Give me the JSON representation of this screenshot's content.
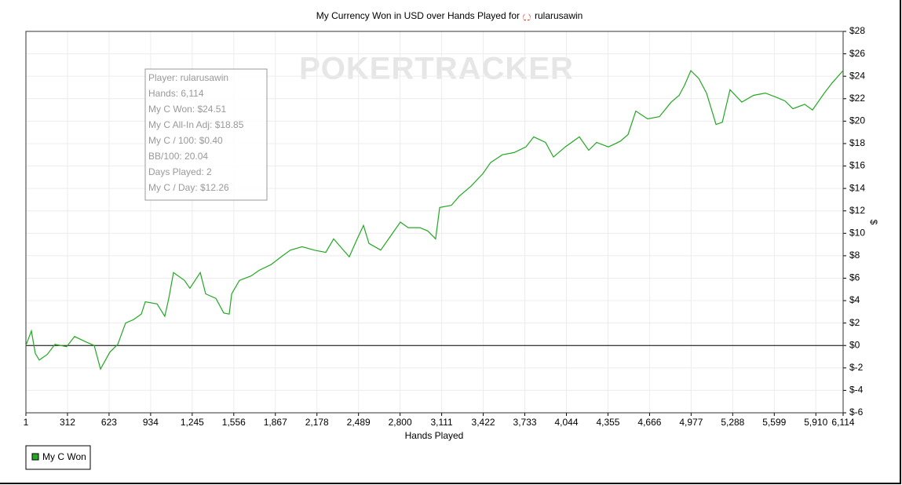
{
  "chart_data": {
    "type": "line",
    "title": "My Currency Won in USD over Hands Played for",
    "player": "rularusawin",
    "watermark": "POKERTRACKER",
    "x_label": "Hands Played",
    "y_label": "$",
    "info_box": [
      "Player: rularusawin",
      "Hands: 6,114",
      "My C Won: $24.51",
      "My C All-In Adj: $18.85",
      "My C / 100: $0.40",
      "BB/100: 20.04",
      "Days Played: 2",
      "My C / Day: $12.26"
    ],
    "grid": true,
    "legend": "bottom-left",
    "xlim": [
      1,
      6114
    ],
    "xticks": [
      1,
      312,
      623,
      934,
      {
        "value": 1245,
        "label": "1,245"
      },
      {
        "value": 1556,
        "label": "1,556"
      },
      {
        "value": 1867,
        "label": "1,867"
      },
      {
        "value": 2178,
        "label": "2,178"
      },
      {
        "value": 2489,
        "label": "2,489"
      },
      {
        "value": 2800,
        "label": "2,800"
      },
      {
        "value": 3111,
        "label": "3,111"
      },
      {
        "value": 3422,
        "label": "3,422"
      },
      {
        "value": 3733,
        "label": "3,733"
      },
      {
        "value": 4044,
        "label": "4,044"
      },
      {
        "value": 4355,
        "label": "4,355"
      },
      {
        "value": 4666,
        "label": "4,666"
      },
      {
        "value": 4977,
        "label": "4,977"
      },
      {
        "value": 5288,
        "label": "5,288"
      },
      {
        "value": 5599,
        "label": "5,599"
      },
      {
        "value": 5910,
        "label": "5,910"
      },
      {
        "value": 6114,
        "label": "6,114"
      }
    ],
    "ylim": [
      -6,
      28
    ],
    "yticks": [
      {
        "value": -6,
        "label": "$-6"
      },
      {
        "value": -4,
        "label": "$-4"
      },
      {
        "value": -2,
        "label": "$-2"
      },
      {
        "value": 0,
        "label": "$0"
      },
      {
        "value": 2,
        "label": "$2"
      },
      {
        "value": 4,
        "label": "$4"
      },
      {
        "value": 6,
        "label": "$6"
      },
      {
        "value": 8,
        "label": "$8"
      },
      {
        "value": 10,
        "label": "$10"
      },
      {
        "value": 12,
        "label": "$12"
      },
      {
        "value": 14,
        "label": "$14"
      },
      {
        "value": 16,
        "label": "$16"
      },
      {
        "value": 18,
        "label": "$18"
      },
      {
        "value": 20,
        "label": "$20"
      },
      {
        "value": 22,
        "label": "$22"
      },
      {
        "value": 24,
        "label": "$24"
      },
      {
        "value": 26,
        "label": "$26"
      },
      {
        "value": 28,
        "label": "$28"
      }
    ],
    "x": [
      1,
      42,
      71,
      101,
      160,
      218,
      306,
      365,
      453,
      512,
      559,
      629,
      688,
      747,
      805,
      864,
      894,
      982,
      1040,
      1070,
      1105,
      1187,
      1228,
      1305,
      1346,
      1422,
      1481,
      1522,
      1540,
      1598,
      1686,
      1745,
      1833,
      1921,
      1980,
      2068,
      2156,
      2244,
      2303,
      2391,
      2420,
      2479,
      2526,
      2567,
      2655,
      2714,
      2802,
      2861,
      2949,
      3008,
      3066,
      3096,
      3184,
      3242,
      3330,
      3418,
      3477,
      3565,
      3653,
      3741,
      3800,
      3888,
      3947,
      4035,
      4141,
      4211,
      4270,
      4358,
      4446,
      4505,
      4563,
      4652,
      4740,
      4828,
      4887,
      4928,
      4975,
      5034,
      5092,
      5163,
      5210,
      5268,
      5356,
      5444,
      5532,
      5620,
      5679,
      5738,
      5826,
      5885,
      5973,
      6031,
      6114
    ],
    "series": [
      {
        "name": "My C Won",
        "color": "#22a822",
        "values": [
          0,
          1.3,
          -0.7,
          -1.3,
          -0.8,
          0.1,
          -0.1,
          0.8,
          0.3,
          0,
          -2.1,
          -0.6,
          0.1,
          2,
          2.3,
          2.8,
          3.9,
          3.7,
          2.6,
          4.2,
          6.5,
          5.8,
          5.1,
          6.5,
          4.6,
          4.2,
          2.9,
          2.8,
          4.6,
          5.8,
          6.2,
          6.7,
          7.2,
          8,
          8.5,
          8.8,
          8.5,
          8.3,
          9.5,
          8.3,
          7.9,
          9.5,
          10.7,
          9.1,
          8.5,
          9.5,
          11,
          10.5,
          10.5,
          10.2,
          9.5,
          12.3,
          12.5,
          13.3,
          14.2,
          15.3,
          16.3,
          17,
          17.2,
          17.7,
          18.6,
          18.1,
          16.8,
          17.7,
          18.6,
          17.4,
          18.1,
          17.7,
          18.2,
          18.8,
          20.9,
          20.2,
          20.4,
          21.7,
          22.3,
          23.2,
          24.5,
          23.8,
          22.5,
          19.7,
          19.9,
          22.8,
          21.7,
          22.3,
          22.5,
          22.1,
          21.8,
          21.1,
          21.5,
          21,
          22.5,
          23.4,
          24.51
        ]
      }
    ]
  }
}
